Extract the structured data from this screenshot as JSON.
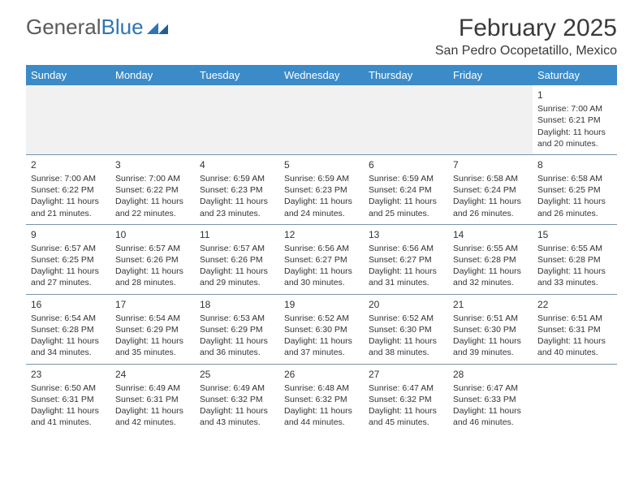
{
  "logo": {
    "text1": "General",
    "text2": "Blue"
  },
  "title": "February 2025",
  "location": "San Pedro Ocopetatillo, Mexico",
  "colors": {
    "header_bg": "#3b8bc9",
    "border": "#7a93a8",
    "grey_row": "#f1f1f1",
    "text": "#333333",
    "logo_grey": "#5a5a5a",
    "logo_blue": "#2e75b6"
  },
  "daysOfWeek": [
    "Sunday",
    "Monday",
    "Tuesday",
    "Wednesday",
    "Thursday",
    "Friday",
    "Saturday"
  ],
  "weeks": [
    [
      null,
      null,
      null,
      null,
      null,
      null,
      {
        "n": "1",
        "sr": "7:00 AM",
        "ss": "6:21 PM",
        "dl": "11 hours and 20 minutes."
      }
    ],
    [
      {
        "n": "2",
        "sr": "7:00 AM",
        "ss": "6:22 PM",
        "dl": "11 hours and 21 minutes."
      },
      {
        "n": "3",
        "sr": "7:00 AM",
        "ss": "6:22 PM",
        "dl": "11 hours and 22 minutes."
      },
      {
        "n": "4",
        "sr": "6:59 AM",
        "ss": "6:23 PM",
        "dl": "11 hours and 23 minutes."
      },
      {
        "n": "5",
        "sr": "6:59 AM",
        "ss": "6:23 PM",
        "dl": "11 hours and 24 minutes."
      },
      {
        "n": "6",
        "sr": "6:59 AM",
        "ss": "6:24 PM",
        "dl": "11 hours and 25 minutes."
      },
      {
        "n": "7",
        "sr": "6:58 AM",
        "ss": "6:24 PM",
        "dl": "11 hours and 26 minutes."
      },
      {
        "n": "8",
        "sr": "6:58 AM",
        "ss": "6:25 PM",
        "dl": "11 hours and 26 minutes."
      }
    ],
    [
      {
        "n": "9",
        "sr": "6:57 AM",
        "ss": "6:25 PM",
        "dl": "11 hours and 27 minutes."
      },
      {
        "n": "10",
        "sr": "6:57 AM",
        "ss": "6:26 PM",
        "dl": "11 hours and 28 minutes."
      },
      {
        "n": "11",
        "sr": "6:57 AM",
        "ss": "6:26 PM",
        "dl": "11 hours and 29 minutes."
      },
      {
        "n": "12",
        "sr": "6:56 AM",
        "ss": "6:27 PM",
        "dl": "11 hours and 30 minutes."
      },
      {
        "n": "13",
        "sr": "6:56 AM",
        "ss": "6:27 PM",
        "dl": "11 hours and 31 minutes."
      },
      {
        "n": "14",
        "sr": "6:55 AM",
        "ss": "6:28 PM",
        "dl": "11 hours and 32 minutes."
      },
      {
        "n": "15",
        "sr": "6:55 AM",
        "ss": "6:28 PM",
        "dl": "11 hours and 33 minutes."
      }
    ],
    [
      {
        "n": "16",
        "sr": "6:54 AM",
        "ss": "6:28 PM",
        "dl": "11 hours and 34 minutes."
      },
      {
        "n": "17",
        "sr": "6:54 AM",
        "ss": "6:29 PM",
        "dl": "11 hours and 35 minutes."
      },
      {
        "n": "18",
        "sr": "6:53 AM",
        "ss": "6:29 PM",
        "dl": "11 hours and 36 minutes."
      },
      {
        "n": "19",
        "sr": "6:52 AM",
        "ss": "6:30 PM",
        "dl": "11 hours and 37 minutes."
      },
      {
        "n": "20",
        "sr": "6:52 AM",
        "ss": "6:30 PM",
        "dl": "11 hours and 38 minutes."
      },
      {
        "n": "21",
        "sr": "6:51 AM",
        "ss": "6:30 PM",
        "dl": "11 hours and 39 minutes."
      },
      {
        "n": "22",
        "sr": "6:51 AM",
        "ss": "6:31 PM",
        "dl": "11 hours and 40 minutes."
      }
    ],
    [
      {
        "n": "23",
        "sr": "6:50 AM",
        "ss": "6:31 PM",
        "dl": "11 hours and 41 minutes."
      },
      {
        "n": "24",
        "sr": "6:49 AM",
        "ss": "6:31 PM",
        "dl": "11 hours and 42 minutes."
      },
      {
        "n": "25",
        "sr": "6:49 AM",
        "ss": "6:32 PM",
        "dl": "11 hours and 43 minutes."
      },
      {
        "n": "26",
        "sr": "6:48 AM",
        "ss": "6:32 PM",
        "dl": "11 hours and 44 minutes."
      },
      {
        "n": "27",
        "sr": "6:47 AM",
        "ss": "6:32 PM",
        "dl": "11 hours and 45 minutes."
      },
      {
        "n": "28",
        "sr": "6:47 AM",
        "ss": "6:33 PM",
        "dl": "11 hours and 46 minutes."
      },
      null
    ]
  ],
  "labels": {
    "sunrise": "Sunrise: ",
    "sunset": "Sunset: ",
    "daylight": "Daylight: "
  }
}
